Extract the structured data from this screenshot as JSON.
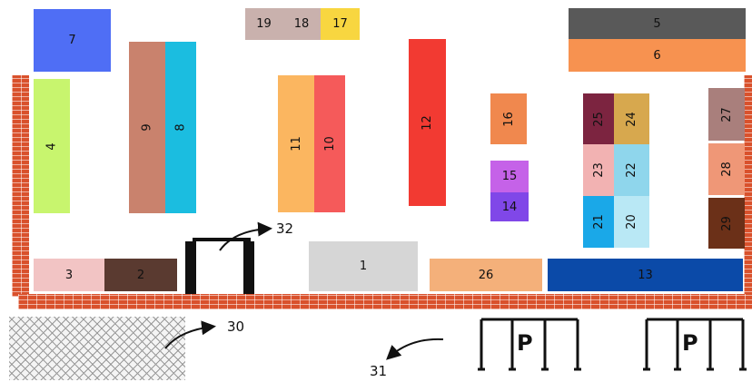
{
  "blocks": {
    "b1": "1",
    "b2": "2",
    "b3": "3",
    "b4": "4",
    "b5": "5",
    "b6": "6",
    "b7": "7",
    "b8": "8",
    "b9": "9",
    "b10": "10",
    "b11": "11",
    "b12": "12",
    "b13": "13",
    "b14": "14",
    "b15": "15",
    "b16": "16",
    "b17": "17",
    "b18": "18",
    "b19": "19",
    "b20": "20",
    "b21": "21",
    "b22": "22",
    "b23": "23",
    "b24": "24",
    "b25": "25",
    "b26": "26",
    "b27": "27",
    "b28": "28",
    "b29": "29"
  },
  "markers": {
    "m30": "30",
    "m31": "31",
    "m32": "32"
  },
  "parking": {
    "p1": "P",
    "p2": "P"
  },
  "colors": {
    "wall": "#d9512c",
    "b1": "#d6d6d6",
    "b2": "#5a3a30",
    "b3": "#f2c4c4",
    "b4": "#c8f56e",
    "b5": "#595959",
    "b6": "#f79250",
    "b7": "#4f6ef5",
    "b8": "#1bbde0",
    "b9": "#c9826d",
    "b10": "#f55a5a",
    "b11": "#fbb660",
    "b12": "#f23a32",
    "b13": "#0b4aa8",
    "b14": "#8047e8",
    "b15": "#c562e8",
    "b16": "#f0884e",
    "b17": "#f8d640",
    "b18": "#c9b1ad",
    "b19": "#c9b1ad",
    "b20": "#b9e8f5",
    "b21": "#1aa8e8",
    "b22": "#8fd6ec",
    "b23": "#f2b2b2",
    "b24": "#d7a84e",
    "b25": "#7c2440",
    "b26": "#f4b07a",
    "b27": "#a97f7c",
    "b28": "#ef9777",
    "b29": "#6b3018"
  }
}
